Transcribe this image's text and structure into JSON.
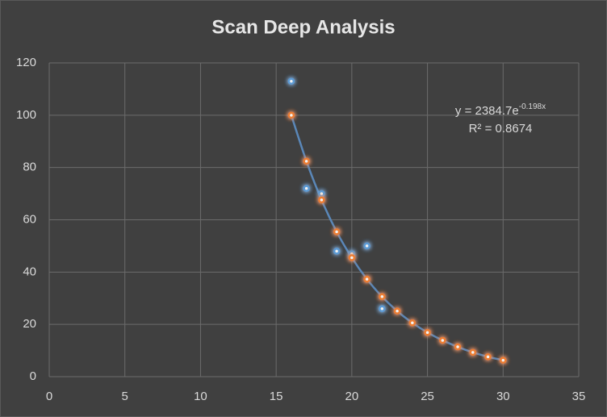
{
  "chart_data": {
    "type": "scatter",
    "title": "Scan Deep Analysis",
    "series": [
      {
        "color": "#5b9bd5",
        "x": [
          16,
          17,
          18,
          19,
          20,
          21,
          22
        ],
        "values": [
          113,
          72,
          70,
          48,
          47,
          50,
          26
        ]
      },
      {
        "color": "#ed7d31",
        "line_color": "#5a87b8",
        "x": [
          16,
          17,
          18,
          19,
          20,
          21,
          22,
          23,
          24,
          25,
          26,
          27,
          28,
          29,
          30
        ],
        "values": [
          100,
          82.4,
          67.6,
          55.4,
          45.5,
          37.3,
          30.6,
          25.1,
          20.6,
          16.9,
          13.9,
          11.4,
          9.3,
          7.6,
          6.3
        ]
      }
    ],
    "annotations": {
      "equation": "y = 2384.7e",
      "equation_exponent": "-0.198x",
      "r_squared": "R² = 0.8674"
    },
    "xlim": [
      0,
      35
    ],
    "xticks": [
      0,
      5,
      10,
      15,
      20,
      25,
      30,
      35
    ],
    "ylim": [
      0,
      120
    ],
    "yticks": [
      0,
      20,
      40,
      60,
      80,
      100,
      120
    ],
    "grid": true
  }
}
